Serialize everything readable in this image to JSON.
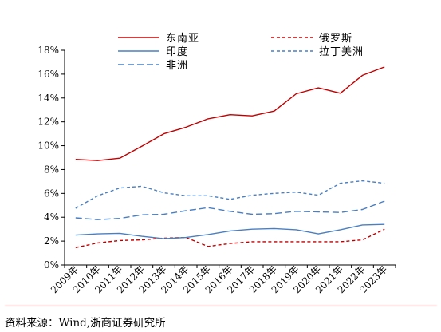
{
  "chart_data": {
    "type": "line",
    "title": "",
    "xlabel": "",
    "ylabel": "",
    "categories": [
      "2009年",
      "2010年",
      "2011年",
      "2012年",
      "2013年",
      "2014年",
      "2015年",
      "2016年",
      "2017年",
      "2018年",
      "2019年",
      "2020年",
      "2021年",
      "2022年",
      "2023年"
    ],
    "y_ticks": [
      "0%",
      "2%",
      "4%",
      "6%",
      "8%",
      "10%",
      "12%",
      "14%",
      "16%",
      "18%"
    ],
    "ylim": [
      0,
      18
    ],
    "grid": false,
    "legend_position": "top",
    "series": [
      {
        "name": "东南亚",
        "color": "#c00000",
        "dash": "solid",
        "values": [
          8.85,
          8.75,
          8.95,
          9.95,
          11.0,
          11.55,
          12.25,
          12.6,
          12.5,
          12.9,
          14.35,
          14.85,
          14.4,
          15.9,
          16.6
        ]
      },
      {
        "name": "俄罗斯",
        "color": "#c00000",
        "dash": "short",
        "values": [
          1.45,
          1.85,
          2.05,
          2.1,
          2.25,
          2.3,
          1.55,
          1.8,
          1.95,
          1.95,
          1.95,
          1.95,
          1.95,
          2.1,
          3.0
        ]
      },
      {
        "name": "印度",
        "color": "#4a7fc0",
        "dash": "solid",
        "values": [
          2.5,
          2.6,
          2.65,
          2.4,
          2.2,
          2.3,
          2.55,
          2.85,
          3.0,
          3.05,
          2.95,
          2.6,
          2.95,
          3.35,
          3.4
        ]
      },
      {
        "name": "拉丁美洲",
        "color": "#4a7fc0",
        "dash": "short",
        "values": [
          4.75,
          5.8,
          6.45,
          6.6,
          6.05,
          5.8,
          5.8,
          5.5,
          5.85,
          6.0,
          6.1,
          5.85,
          6.85,
          7.05,
          6.85
        ]
      },
      {
        "name": "非洲",
        "color": "#4a7fc0",
        "dash": "long",
        "values": [
          3.95,
          3.8,
          3.9,
          4.2,
          4.25,
          4.55,
          4.8,
          4.5,
          4.25,
          4.3,
          4.5,
          4.45,
          4.4,
          4.65,
          5.35
        ]
      }
    ]
  },
  "footer": {
    "source": "资料来源：Wind,浙商证券研究所"
  }
}
